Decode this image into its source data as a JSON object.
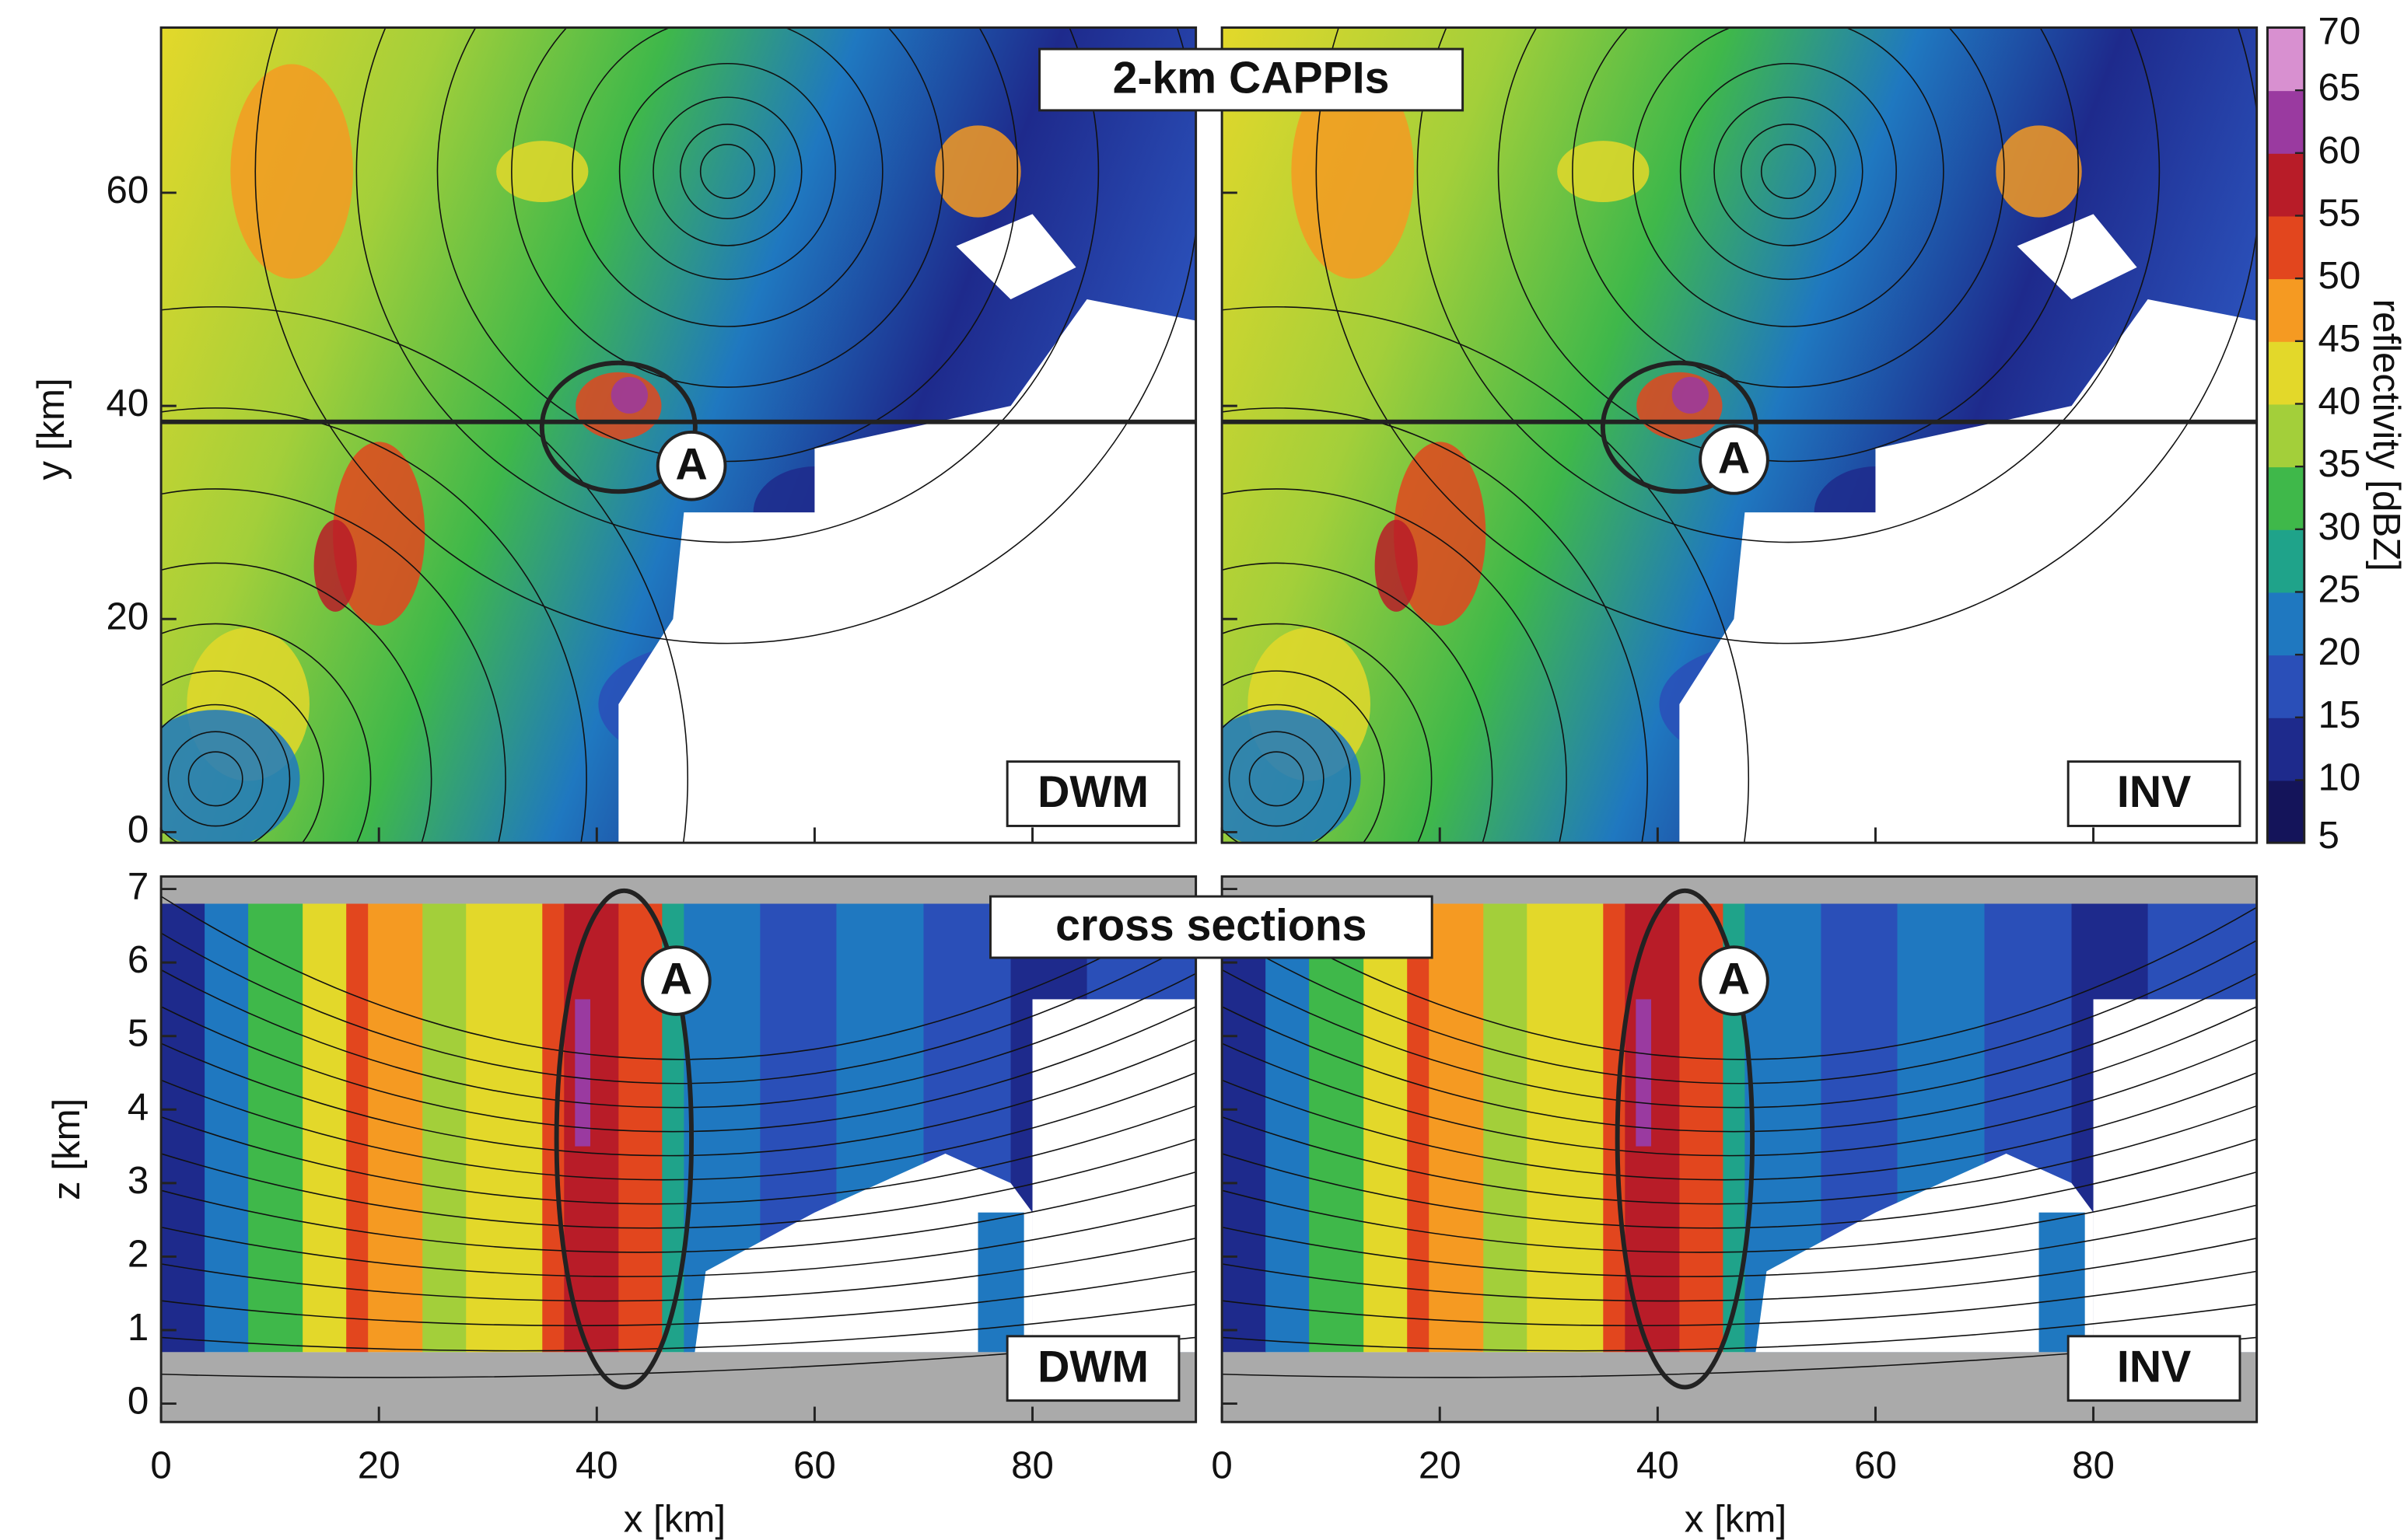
{
  "figure": {
    "title_top": "2-km CAPPIs",
    "title_bottom": "cross sections",
    "panels": [
      {
        "label": "DWM"
      },
      {
        "label": "INV"
      }
    ],
    "marker": "A",
    "x_axis": {
      "label": "x [km]",
      "lim": [
        0,
        95
      ],
      "ticks": [
        0,
        20,
        40,
        60,
        80
      ]
    },
    "y_axis": {
      "label": "y [km]",
      "lim": [
        -1,
        75.5
      ],
      "ticks": [
        0,
        20,
        40,
        60
      ]
    },
    "z_axis": {
      "label": "z [km]",
      "lim": [
        -0.25,
        7.17
      ],
      "ticks": [
        0,
        1,
        2,
        3,
        4,
        5,
        6,
        7
      ]
    },
    "colorbar": {
      "label": "reflectivity [dBZ]",
      "lim": [
        5,
        70
      ],
      "ticks": [
        5,
        10,
        15,
        20,
        25,
        30,
        35,
        40,
        45,
        50,
        55,
        60,
        65,
        70
      ],
      "colors": [
        "#14145a",
        "#1e2a8c",
        "#2a4fb8",
        "#1f78c0",
        "#1fa38a",
        "#3fb84a",
        "#a3cf3a",
        "#e3d82a",
        "#f59a22",
        "#e2461e",
        "#b81c28",
        "#9a3aa0",
        "#d890d0"
      ]
    }
  }
}
